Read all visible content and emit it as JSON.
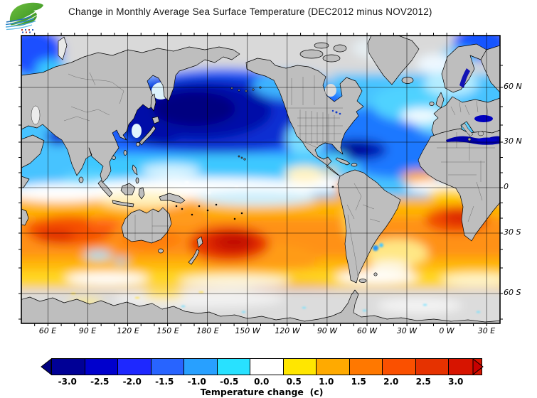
{
  "header": {
    "title": "Change in Monthly Average Sea Surface Temperature (DEC2012 minus NOV2012)"
  },
  "map": {
    "x_axis_labels": [
      "60 E",
      "90 E",
      "120 E",
      "150 E",
      "180 E",
      "150 W",
      "120 W",
      "90 W",
      "60 W",
      "30 W",
      "0 W",
      "30 E"
    ],
    "y_axis_labels": [
      "60 N",
      "30 N",
      "0",
      "30 S",
      "60 S"
    ],
    "land_color": "#bebebe",
    "no_data_color": "#dcdcdc"
  },
  "colorbar": {
    "caption": "Temperature change  (c)",
    "tick_labels": [
      "-3.0",
      "-2.5",
      "-2.0",
      "-1.5",
      "-1.0",
      "-0.5",
      "0.0",
      "0.5",
      "1.0",
      "1.5",
      "2.0",
      "2.5",
      "3.0"
    ],
    "segment_colors": [
      "#000096",
      "#0000cd",
      "#1e28ff",
      "#2864ff",
      "#28a0ff",
      "#28e1ff",
      "#ffffff",
      "#ffe600",
      "#ffaa00",
      "#ff7800",
      "#fa5000",
      "#e63200",
      "#d71400"
    ],
    "left_arrow_color": "#000080",
    "right_arrow_color": "#c80000"
  }
}
